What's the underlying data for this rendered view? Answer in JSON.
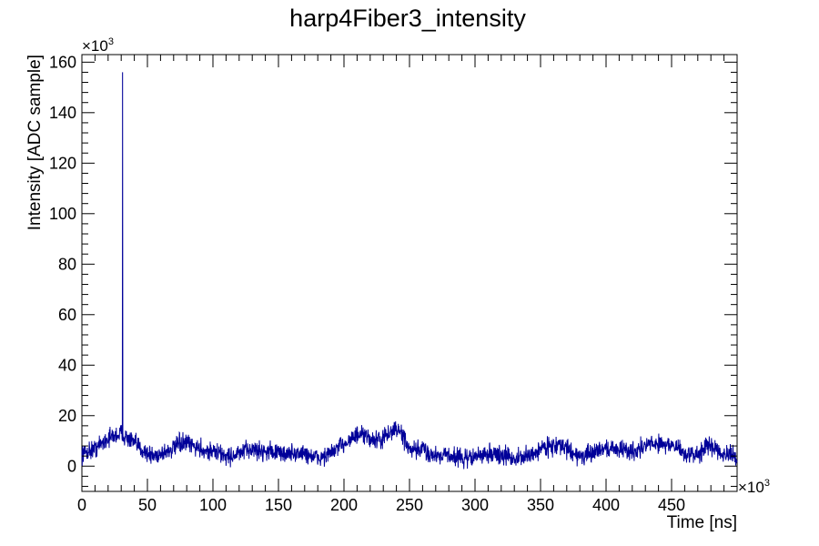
{
  "chart_data": {
    "type": "line",
    "title": "harp4Fiber3_intensity",
    "xlabel": "Time [ns]",
    "ylabel": "Intensity [ADC sample]",
    "x_multiplier_base": "×10",
    "x_multiplier_exp": "3",
    "y_multiplier_base": "×10",
    "y_multiplier_exp": "3",
    "xlim": [
      0,
      500
    ],
    "ylim": [
      -10,
      163
    ],
    "x_ticks": [
      0,
      50,
      100,
      150,
      200,
      250,
      300,
      350,
      400,
      450
    ],
    "y_ticks": [
      0,
      20,
      40,
      60,
      80,
      100,
      120,
      140,
      160
    ],
    "x_tick_labels": [
      "0",
      "50",
      "100",
      "150",
      "200",
      "250",
      "300",
      "350",
      "400",
      "450"
    ],
    "y_tick_labels": [
      "0",
      "20",
      "40",
      "60",
      "80",
      "100",
      "120",
      "140",
      "160"
    ],
    "grid": false,
    "legend": "none",
    "series": [
      {
        "color": "#000099",
        "noise_amplitude": 3,
        "spike": {
          "x": 31,
          "y": 156
        },
        "envelope": [
          [
            0,
            5
          ],
          [
            5,
            6
          ],
          [
            10,
            7
          ],
          [
            15,
            9
          ],
          [
            20,
            11
          ],
          [
            25,
            12
          ],
          [
            30,
            13
          ],
          [
            35,
            11
          ],
          [
            40,
            9
          ],
          [
            45,
            7
          ],
          [
            50,
            5
          ],
          [
            55,
            4
          ],
          [
            60,
            5
          ],
          [
            65,
            6
          ],
          [
            70,
            7
          ],
          [
            75,
            9
          ],
          [
            80,
            9
          ],
          [
            85,
            8
          ],
          [
            90,
            7
          ],
          [
            95,
            6
          ],
          [
            100,
            6
          ],
          [
            105,
            5
          ],
          [
            110,
            4
          ],
          [
            115,
            4
          ],
          [
            120,
            5
          ],
          [
            125,
            6
          ],
          [
            130,
            7
          ],
          [
            135,
            6
          ],
          [
            140,
            6
          ],
          [
            145,
            6
          ],
          [
            150,
            5
          ],
          [
            155,
            5
          ],
          [
            160,
            5
          ],
          [
            165,
            5
          ],
          [
            170,
            5
          ],
          [
            175,
            4
          ],
          [
            180,
            3
          ],
          [
            185,
            4
          ],
          [
            190,
            5
          ],
          [
            195,
            7
          ],
          [
            200,
            9
          ],
          [
            205,
            11
          ],
          [
            210,
            12
          ],
          [
            215,
            12
          ],
          [
            220,
            11
          ],
          [
            225,
            10
          ],
          [
            230,
            11
          ],
          [
            235,
            13
          ],
          [
            240,
            15
          ],
          [
            245,
            12
          ],
          [
            250,
            6
          ],
          [
            255,
            6
          ],
          [
            260,
            7
          ],
          [
            265,
            5
          ],
          [
            270,
            4
          ],
          [
            275,
            5
          ],
          [
            280,
            4
          ],
          [
            285,
            4
          ],
          [
            290,
            3
          ],
          [
            295,
            3
          ],
          [
            300,
            4
          ],
          [
            305,
            4
          ],
          [
            310,
            5
          ],
          [
            315,
            5
          ],
          [
            320,
            4
          ],
          [
            325,
            4
          ],
          [
            330,
            3
          ],
          [
            335,
            3
          ],
          [
            340,
            4
          ],
          [
            345,
            5
          ],
          [
            350,
            7
          ],
          [
            355,
            8
          ],
          [
            360,
            8
          ],
          [
            365,
            8
          ],
          [
            370,
            7
          ],
          [
            375,
            5
          ],
          [
            380,
            4
          ],
          [
            385,
            4
          ],
          [
            390,
            5
          ],
          [
            395,
            7
          ],
          [
            400,
            7
          ],
          [
            405,
            7
          ],
          [
            410,
            7
          ],
          [
            415,
            6
          ],
          [
            420,
            6
          ],
          [
            425,
            7
          ],
          [
            430,
            8
          ],
          [
            435,
            9
          ],
          [
            440,
            9
          ],
          [
            445,
            9
          ],
          [
            450,
            8
          ],
          [
            455,
            7
          ],
          [
            460,
            5
          ],
          [
            465,
            4
          ],
          [
            470,
            5
          ],
          [
            475,
            7
          ],
          [
            480,
            8
          ],
          [
            485,
            7
          ],
          [
            490,
            5
          ],
          [
            495,
            4
          ],
          [
            499,
            3
          ]
        ]
      }
    ]
  }
}
